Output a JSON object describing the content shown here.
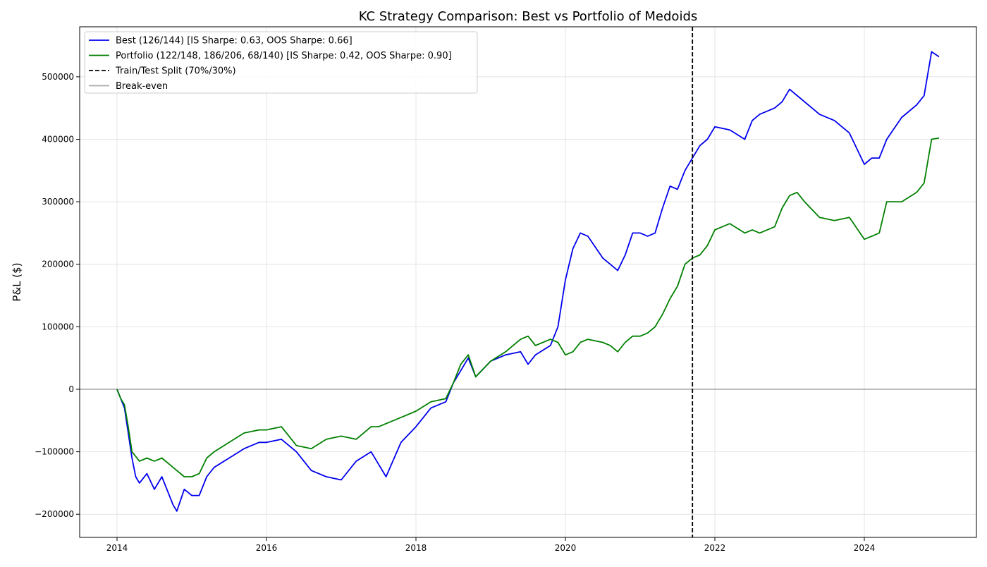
{
  "chart_data": {
    "type": "line",
    "title": "KC Strategy Comparison: Best vs Portfolio of Medoids",
    "xlabel": "",
    "ylabel": "P&L ($)",
    "xlim": [
      2013.5,
      2025.5
    ],
    "ylim": [
      -237000,
      580000
    ],
    "x_ticks": [
      2014,
      2016,
      2018,
      2020,
      2022,
      2024
    ],
    "x_tick_labels": [
      "2014",
      "2016",
      "2018",
      "2020",
      "2022",
      "2024"
    ],
    "y_ticks": [
      -200000,
      -100000,
      0,
      100000,
      200000,
      300000,
      400000,
      500000
    ],
    "y_tick_labels": [
      "−200000",
      "−100000",
      "0",
      "100000",
      "200000",
      "300000",
      "400000",
      "500000"
    ],
    "grid": true,
    "legend_position": "top-left",
    "split_line": {
      "x": 2021.7,
      "label": "Train/Test Split (70%/30%)",
      "color": "#000000"
    },
    "break_even": {
      "y": 0,
      "label": "Break-even",
      "color": "#aaaaaa"
    },
    "series": [
      {
        "name": "Best (126/144) [IS Sharpe: 0.63, OOS Sharpe: 0.66]",
        "color": "#0000ee",
        "x": [
          2014.0,
          2014.05,
          2014.1,
          2014.15,
          2014.2,
          2014.25,
          2014.3,
          2014.4,
          2014.5,
          2014.6,
          2014.7,
          2014.75,
          2014.8,
          2014.9,
          2015.0,
          2015.1,
          2015.2,
          2015.3,
          2015.5,
          2015.7,
          2015.9,
          2016.0,
          2016.2,
          2016.4,
          2016.6,
          2016.8,
          2017.0,
          2017.2,
          2017.4,
          2017.5,
          2017.6,
          2017.8,
          2018.0,
          2018.2,
          2018.4,
          2018.5,
          2018.6,
          2018.7,
          2018.8,
          2019.0,
          2019.2,
          2019.4,
          2019.5,
          2019.6,
          2019.8,
          2019.9,
          2020.0,
          2020.1,
          2020.2,
          2020.3,
          2020.5,
          2020.6,
          2020.7,
          2020.8,
          2020.9,
          2021.0,
          2021.1,
          2021.2,
          2021.3,
          2021.4,
          2021.5,
          2021.6,
          2021.7,
          2021.8,
          2021.9,
          2022.0,
          2022.2,
          2022.4,
          2022.5,
          2022.6,
          2022.8,
          2022.9,
          2023.0,
          2023.1,
          2023.2,
          2023.4,
          2023.6,
          2023.8,
          2024.0,
          2024.1,
          2024.2,
          2024.3,
          2024.5,
          2024.7,
          2024.8,
          2024.9,
          2025.0
        ],
        "values": [
          0,
          -15000,
          -30000,
          -70000,
          -110000,
          -140000,
          -150000,
          -135000,
          -160000,
          -140000,
          -170000,
          -185000,
          -195000,
          -160000,
          -170000,
          -170000,
          -140000,
          -125000,
          -110000,
          -95000,
          -85000,
          -85000,
          -80000,
          -100000,
          -130000,
          -140000,
          -145000,
          -115000,
          -100000,
          -120000,
          -140000,
          -85000,
          -60000,
          -30000,
          -20000,
          10000,
          30000,
          50000,
          20000,
          45000,
          55000,
          60000,
          40000,
          55000,
          70000,
          100000,
          175000,
          225000,
          250000,
          245000,
          210000,
          200000,
          190000,
          215000,
          250000,
          250000,
          245000,
          250000,
          290000,
          325000,
          320000,
          350000,
          370000,
          390000,
          400000,
          420000,
          415000,
          400000,
          430000,
          440000,
          450000,
          460000,
          480000,
          470000,
          460000,
          440000,
          430000,
          410000,
          360000,
          370000,
          370000,
          400000,
          435000,
          455000,
          470000,
          540000,
          532000
        ]
      },
      {
        "name": "Portfolio (122/148, 186/206, 68/140) [IS Sharpe: 0.42, OOS Sharpe: 0.90]",
        "color": "#008000",
        "x": [
          2014.0,
          2014.05,
          2014.1,
          2014.15,
          2014.2,
          2014.3,
          2014.4,
          2014.5,
          2014.6,
          2014.7,
          2014.8,
          2014.9,
          2015.0,
          2015.1,
          2015.2,
          2015.3,
          2015.5,
          2015.7,
          2015.9,
          2016.0,
          2016.2,
          2016.4,
          2016.6,
          2016.8,
          2017.0,
          2017.2,
          2017.4,
          2017.5,
          2017.6,
          2017.8,
          2018.0,
          2018.2,
          2018.4,
          2018.5,
          2018.6,
          2018.7,
          2018.8,
          2019.0,
          2019.2,
          2019.4,
          2019.5,
          2019.6,
          2019.8,
          2019.9,
          2020.0,
          2020.1,
          2020.2,
          2020.3,
          2020.5,
          2020.6,
          2020.7,
          2020.8,
          2020.9,
          2021.0,
          2021.1,
          2021.2,
          2021.3,
          2021.4,
          2021.5,
          2021.6,
          2021.7,
          2021.8,
          2021.9,
          2022.0,
          2022.2,
          2022.4,
          2022.5,
          2022.6,
          2022.8,
          2022.9,
          2023.0,
          2023.1,
          2023.2,
          2023.4,
          2023.6,
          2023.8,
          2024.0,
          2024.1,
          2024.2,
          2024.3,
          2024.5,
          2024.7,
          2024.8,
          2024.9,
          2025.0
        ],
        "values": [
          0,
          -15000,
          -25000,
          -60000,
          -100000,
          -115000,
          -110000,
          -115000,
          -110000,
          -120000,
          -130000,
          -140000,
          -140000,
          -135000,
          -110000,
          -100000,
          -85000,
          -70000,
          -65000,
          -65000,
          -60000,
          -90000,
          -95000,
          -80000,
          -75000,
          -80000,
          -60000,
          -60000,
          -55000,
          -45000,
          -35000,
          -20000,
          -15000,
          10000,
          40000,
          55000,
          20000,
          45000,
          60000,
          80000,
          85000,
          70000,
          80000,
          75000,
          55000,
          60000,
          75000,
          80000,
          75000,
          70000,
          60000,
          75000,
          85000,
          85000,
          90000,
          100000,
          120000,
          145000,
          165000,
          200000,
          210000,
          215000,
          230000,
          255000,
          265000,
          250000,
          255000,
          250000,
          260000,
          290000,
          310000,
          315000,
          300000,
          275000,
          270000,
          275000,
          240000,
          245000,
          250000,
          300000,
          300000,
          315000,
          330000,
          400000,
          402000
        ]
      }
    ]
  }
}
